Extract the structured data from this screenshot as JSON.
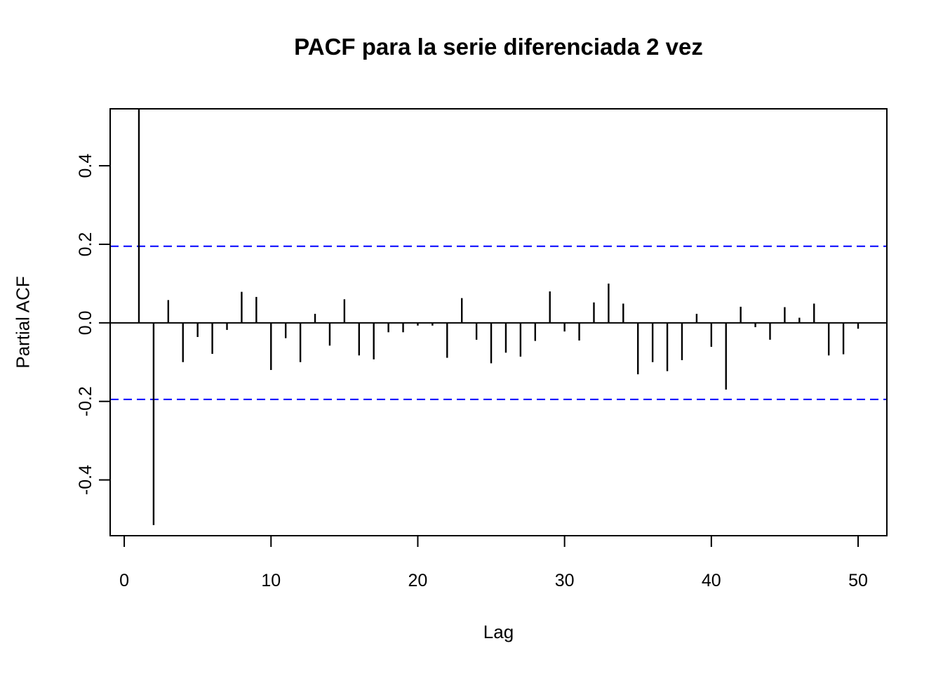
{
  "chart_data": {
    "type": "bar",
    "subtype": "pacf-spike-plot",
    "title": "PACF para la serie diferenciada 2 vez",
    "xlabel": "Lag",
    "ylabel": "Partial ACF",
    "grid": false,
    "legend": false,
    "xlim": [
      -0.96,
      51.96
    ],
    "ylim": [
      -0.542,
      0.545
    ],
    "x_ticks": [
      {
        "value": 0,
        "label": "0"
      },
      {
        "value": 10,
        "label": "10"
      },
      {
        "value": 20,
        "label": "20"
      },
      {
        "value": 30,
        "label": "30"
      },
      {
        "value": 40,
        "label": "40"
      },
      {
        "value": 50,
        "label": "50"
      }
    ],
    "y_ticks": [
      {
        "value": -0.4,
        "label": "-0.4"
      },
      {
        "value": -0.2,
        "label": "-0.2"
      },
      {
        "value": 0.0,
        "label": "0.0"
      },
      {
        "value": 0.2,
        "label": "0.2"
      },
      {
        "value": 0.4,
        "label": "0.4"
      }
    ],
    "confidence_bounds": {
      "upper": 0.195,
      "lower": -0.195,
      "line_style": "dashed",
      "color": "#0000ff"
    },
    "colors": {
      "bar": "#000000",
      "axis": "#000000",
      "background": "#ffffff",
      "conf_line": "#0000ff"
    },
    "series": [
      {
        "name": "Partial ACF",
        "x": [
          1,
          2,
          3,
          4,
          5,
          6,
          7,
          8,
          9,
          10,
          11,
          12,
          13,
          14,
          15,
          16,
          17,
          18,
          19,
          20,
          21,
          22,
          23,
          24,
          25,
          26,
          27,
          28,
          29,
          30,
          31,
          32,
          33,
          34,
          35,
          36,
          37,
          38,
          39,
          40,
          41,
          42,
          43,
          44,
          45,
          46,
          47,
          48,
          49,
          50
        ],
        "values": [
          0.545,
          -0.515,
          0.058,
          -0.1,
          -0.036,
          -0.079,
          -0.018,
          0.079,
          0.066,
          -0.12,
          -0.039,
          -0.1,
          0.023,
          -0.058,
          0.06,
          -0.083,
          -0.093,
          -0.024,
          -0.024,
          -0.007,
          -0.007,
          -0.089,
          0.063,
          -0.043,
          -0.103,
          -0.076,
          -0.086,
          -0.046,
          0.08,
          -0.022,
          -0.045,
          0.052,
          0.1,
          0.049,
          -0.131,
          -0.1,
          -0.123,
          -0.095,
          0.023,
          -0.061,
          -0.17,
          0.041,
          -0.011,
          -0.043,
          0.04,
          0.013,
          0.049,
          -0.083,
          -0.08,
          -0.015
        ]
      }
    ]
  }
}
